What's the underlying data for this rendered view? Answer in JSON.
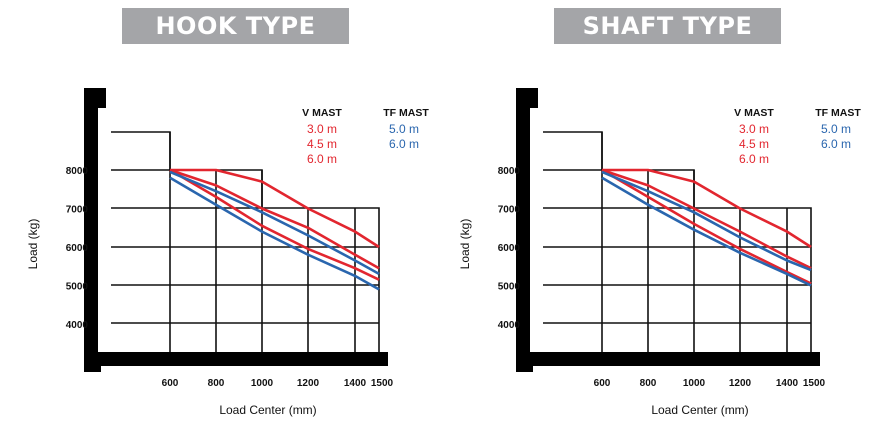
{
  "colors": {
    "red": "#e2262f",
    "blue": "#2a66ae",
    "grid": "#111111",
    "banner": "#a4a5a8"
  },
  "legend": {
    "vmast_title": "V MAST",
    "vmast_items": [
      "3.0 m",
      "4.5 m",
      "6.0 m"
    ],
    "tfmast_title": "TF MAST",
    "tfmast_items": [
      "5.0 m",
      "6.0 m"
    ]
  },
  "chart_data": [
    {
      "type": "line",
      "title": "HOOK TYPE",
      "xlabel": "Load Center (mm)",
      "ylabel": "Load (kg)",
      "x_ticks": [
        "600",
        "800",
        "1000",
        "1200",
        "1400",
        "1500"
      ],
      "y_ticks": [
        "4000",
        "5000",
        "6000",
        "7000",
        "8000"
      ],
      "x": [
        600,
        800,
        1000,
        1200,
        1400,
        1500
      ],
      "series": [
        {
          "name": "3.0 m",
          "mast": "V MAST",
          "color": "red",
          "values": [
            8000,
            8000,
            7700,
            7000,
            6400,
            6000
          ]
        },
        {
          "name": "4.5 m",
          "mast": "V MAST",
          "color": "red",
          "values": [
            8000,
            7600,
            7000,
            6500,
            5800,
            5450
          ]
        },
        {
          "name": "6.0 m",
          "mast": "V MAST",
          "color": "red",
          "values": [
            8000,
            7300,
            6550,
            5950,
            5450,
            5150
          ]
        },
        {
          "name": "5.0 m",
          "mast": "TF MAST",
          "color": "blue",
          "values": [
            7950,
            7450,
            6900,
            6300,
            5650,
            5300
          ]
        },
        {
          "name": "6.0 m",
          "mast": "TF MAST",
          "color": "blue",
          "values": [
            7800,
            7100,
            6400,
            5800,
            5250,
            4900
          ]
        }
      ]
    },
    {
      "type": "line",
      "title": "SHAFT TYPE",
      "xlabel": "Load Center (mm)",
      "ylabel": "Load (kg)",
      "x_ticks": [
        "600",
        "800",
        "1000",
        "1200",
        "1400",
        "1500"
      ],
      "y_ticks": [
        "4000",
        "5000",
        "6000",
        "7000",
        "8000"
      ],
      "x": [
        600,
        800,
        1000,
        1200,
        1400,
        1500
      ],
      "series": [
        {
          "name": "3.0 m",
          "mast": "V MAST",
          "color": "red",
          "values": [
            8000,
            8000,
            7700,
            7000,
            6400,
            6000
          ]
        },
        {
          "name": "4.5 m",
          "mast": "V MAST",
          "color": "red",
          "values": [
            8000,
            7600,
            7000,
            6400,
            5750,
            5450
          ]
        },
        {
          "name": "6.0 m",
          "mast": "V MAST",
          "color": "red",
          "values": [
            8000,
            7300,
            6600,
            5950,
            5350,
            5050
          ]
        },
        {
          "name": "5.0 m",
          "mast": "TF MAST",
          "color": "blue",
          "values": [
            7950,
            7450,
            6900,
            6250,
            5650,
            5400
          ]
        },
        {
          "name": "6.0 m",
          "mast": "TF MAST",
          "color": "blue",
          "values": [
            7800,
            7100,
            6450,
            5850,
            5300,
            5000
          ]
        }
      ]
    }
  ]
}
